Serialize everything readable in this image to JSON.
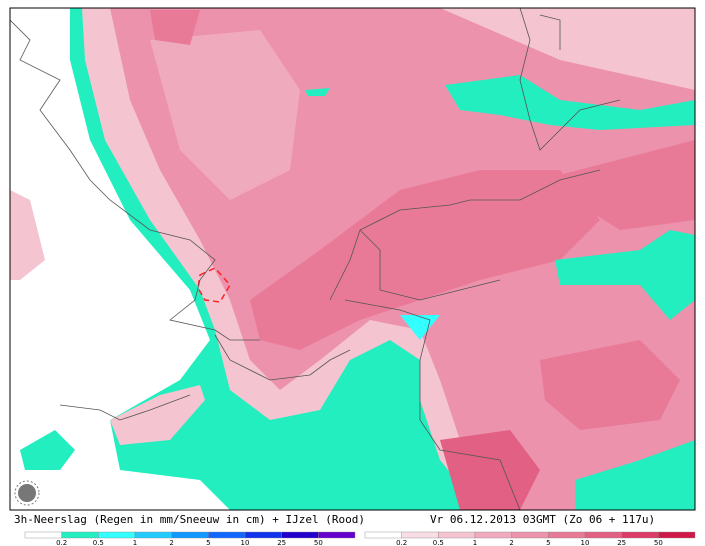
{
  "map": {
    "title": "3h-Neerslag (Regen in mm/Sneeuw in cm) + IJzel (Rood)",
    "timestamp": "Vr 06.12.2013 03GMT (Zo 06 + 117u)",
    "legends": [
      {
        "labels": [
          "0.2",
          "0.5",
          "1",
          "2",
          "5",
          "10",
          "25",
          "50"
        ],
        "colors": [
          "#ffffff",
          "#22eec0",
          "#33ffff",
          "#22ccff",
          "#1199ff",
          "#1166ff",
          "#1133ee",
          "#2200cc",
          "#6600cc"
        ]
      },
      {
        "labels": [
          "0.2",
          "0.5",
          "1",
          "2",
          "5",
          "10",
          "25",
          "50"
        ],
        "colors": [
          "#ffffff",
          "#f8dde4",
          "#f4c4d0",
          "#f0aabe",
          "#ec92ac",
          "#e87a98",
          "#e26084",
          "#dc3a68",
          "#d01848"
        ]
      }
    ]
  }
}
